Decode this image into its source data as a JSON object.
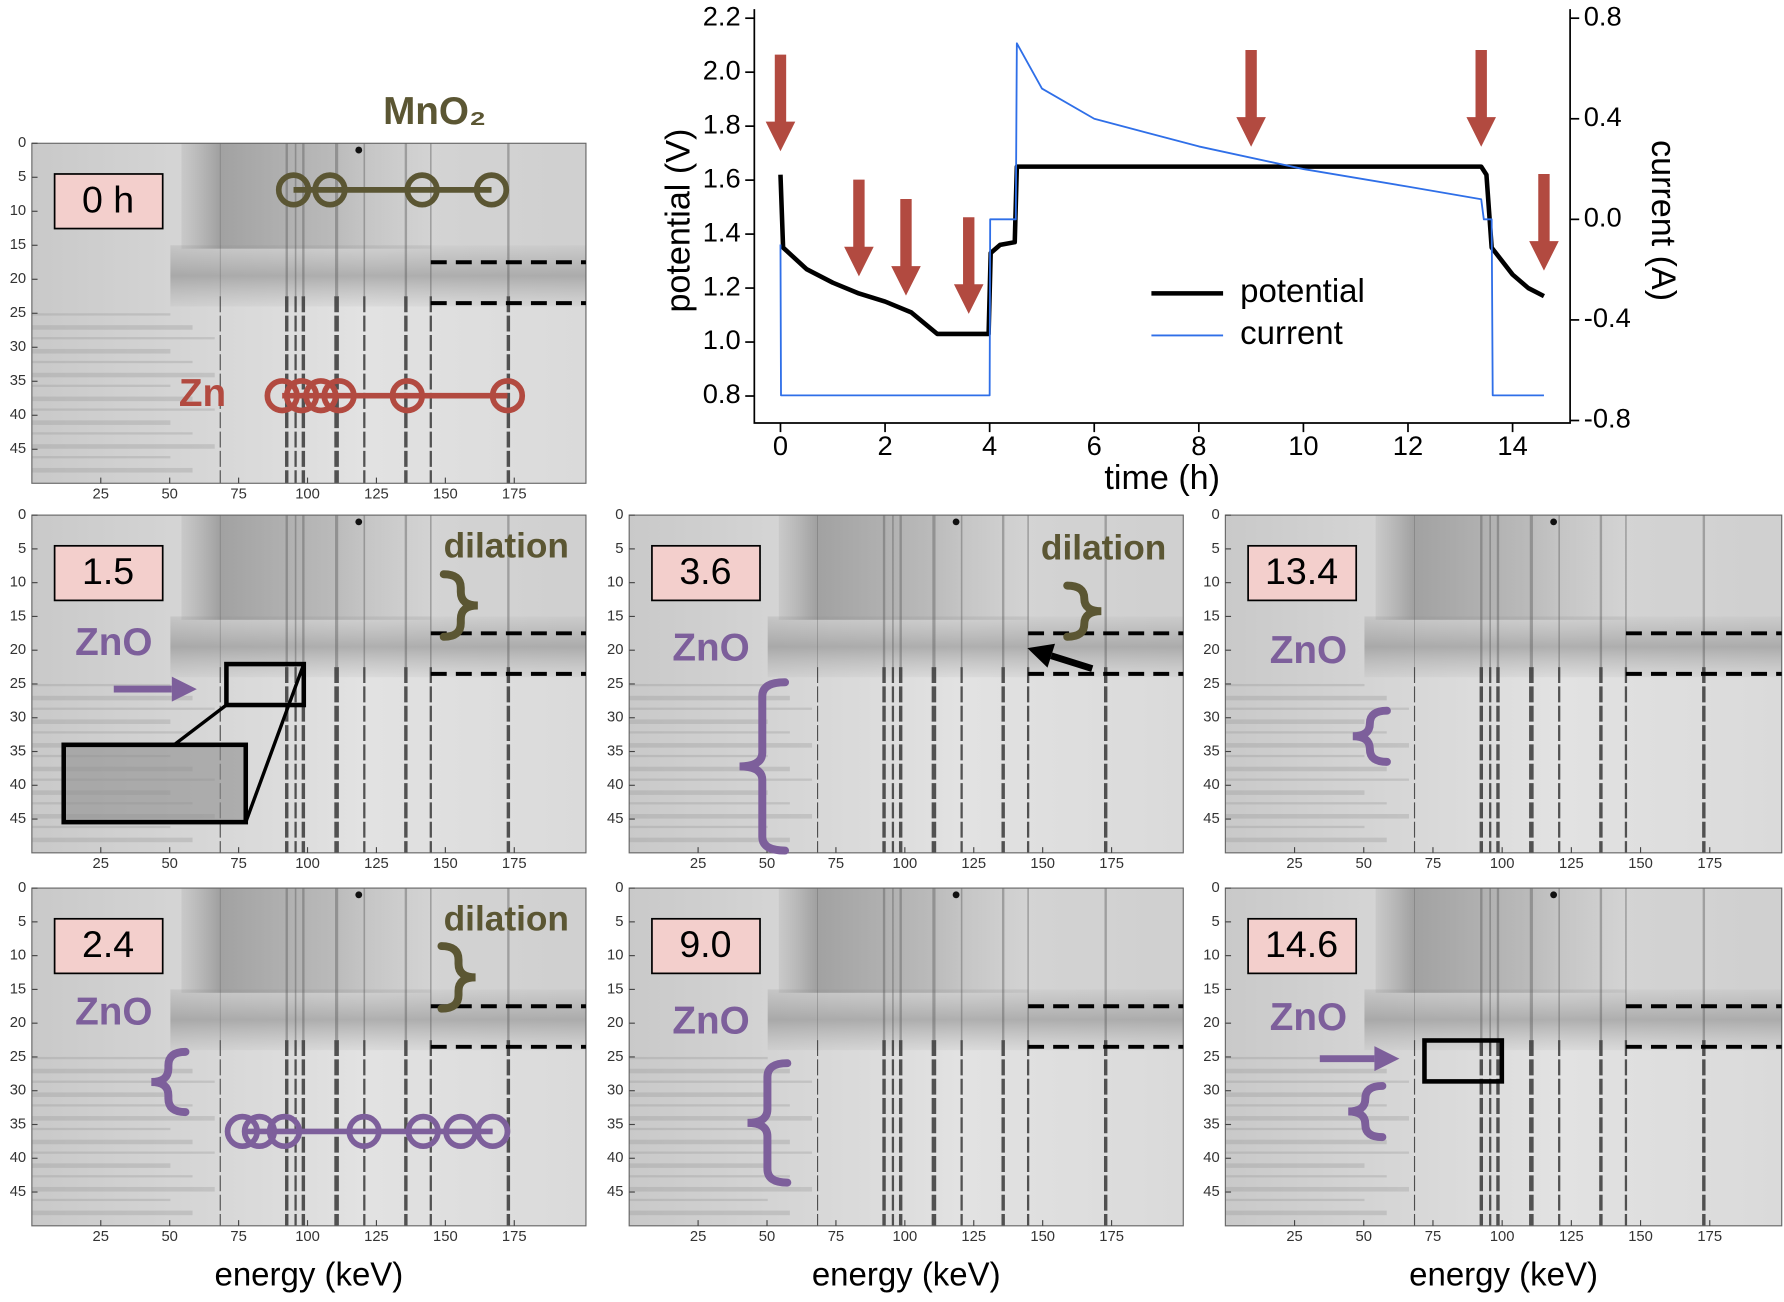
{
  "chart_data": [
    {
      "type": "line",
      "xlabel": "time (h)",
      "ylabel": "potential (V)",
      "y2label": "current (A)",
      "xlim": [
        -0.5,
        15.1
      ],
      "xticks": [
        0,
        2,
        4,
        6,
        8,
        10,
        12,
        14
      ],
      "ylim": [
        0.7,
        2.2
      ],
      "yticks": [
        0.8,
        {
          "value": 1,
          "label": "1.0"
        },
        1.2,
        1.4,
        1.6,
        1.8,
        {
          "value": 2,
          "label": "2.0"
        },
        2.2
      ],
      "y2lim": [
        -0.81,
        0.8
      ],
      "y2ticks": [
        -0.8,
        -0.4,
        {
          "value": 0,
          "label": "0.0"
        },
        0.4,
        0.8
      ],
      "legend": "lower right",
      "arrow_times": [
        0,
        1.5,
        2.4,
        3.6,
        9.0,
        13.4,
        14.6
      ],
      "arrow_color": "#b24a40",
      "series": [
        {
          "name": "potential",
          "color": "#000000",
          "x": [
            0,
            0.05,
            0.5,
            1,
            1.5,
            2,
            2.5,
            3,
            3.5,
            3.98,
            4.02,
            4.2,
            4.48,
            4.52,
            8,
            13.4,
            13.5,
            13.6,
            14,
            14.3,
            14.6
          ],
          "values": [
            1.62,
            1.35,
            1.27,
            1.22,
            1.18,
            1.15,
            1.11,
            1.03,
            1.03,
            1.03,
            1.33,
            1.36,
            1.37,
            1.65,
            1.65,
            1.65,
            1.62,
            1.35,
            1.25,
            1.2,
            1.17
          ]
        },
        {
          "name": "current",
          "color": "#2f6fe8",
          "axis": "y2",
          "x": [
            0,
            0.01,
            4,
            4.01,
            4.5,
            4.52,
            5,
            6,
            8,
            10,
            12,
            13.4,
            13.45,
            13.6,
            13.62,
            14.6
          ],
          "values": [
            -0.1,
            -0.7,
            -0.7,
            0,
            0,
            0.7,
            0.52,
            0.4,
            0.29,
            0.2,
            0.13,
            0.08,
            0,
            0,
            -0.7,
            -0.7
          ]
        }
      ]
    },
    {
      "type": "image",
      "label": "0 h",
      "xlim": [
        0,
        201
      ],
      "ylim": [
        0,
        50
      ],
      "y_inverted": true,
      "xticks": [
        25,
        50,
        75,
        100,
        125,
        150,
        175
      ],
      "yticks": [
        0,
        5,
        10,
        15,
        20,
        25,
        30,
        35,
        40,
        45
      ],
      "annotations": [
        {
          "text": "MnO₂",
          "color": "#5b5633"
        },
        {
          "text": "Zn",
          "color": "#b24a40"
        }
      ]
    },
    {
      "type": "image",
      "label": "1.5",
      "xlim": [
        0,
        201
      ],
      "ylim": [
        0,
        50
      ],
      "y_inverted": true,
      "xticks": [
        25,
        50,
        75,
        100,
        125,
        150,
        175
      ],
      "yticks": [
        0,
        5,
        10,
        15,
        20,
        25,
        30,
        35,
        40,
        45
      ],
      "annotations": [
        {
          "text": "dilation",
          "color": "#5b5633"
        },
        {
          "text": "ZnO",
          "color": "#7d5f9b"
        }
      ]
    },
    {
      "type": "image",
      "label": "3.6",
      "xlim": [
        0,
        201
      ],
      "ylim": [
        0,
        50
      ],
      "y_inverted": true,
      "xticks": [
        25,
        50,
        75,
        100,
        125,
        150,
        175
      ],
      "yticks": [
        0,
        5,
        10,
        15,
        20,
        25,
        30,
        35,
        40,
        45
      ],
      "annotations": [
        {
          "text": "dilation",
          "color": "#5b5633"
        },
        {
          "text": "ZnO",
          "color": "#7d5f9b"
        }
      ]
    },
    {
      "type": "image",
      "label": "13.4",
      "xlim": [
        0,
        201
      ],
      "ylim": [
        0,
        50
      ],
      "y_inverted": true,
      "xticks": [
        25,
        50,
        75,
        100,
        125,
        150,
        175
      ],
      "yticks": [
        0,
        5,
        10,
        15,
        20,
        25,
        30,
        35,
        40,
        45
      ],
      "annotations": [
        {
          "text": "ZnO",
          "color": "#7d5f9b"
        }
      ]
    },
    {
      "type": "image",
      "label": "2.4",
      "xlim": [
        0,
        201
      ],
      "ylim": [
        0,
        50
      ],
      "y_inverted": true,
      "xticks": [
        25,
        50,
        75,
        100,
        125,
        150,
        175
      ],
      "yticks": [
        0,
        5,
        10,
        15,
        20,
        25,
        30,
        35,
        40,
        45
      ],
      "xlabel": "energy (keV)",
      "annotations": [
        {
          "text": "dilation",
          "color": "#5b5633"
        },
        {
          "text": "ZnO",
          "color": "#7d5f9b"
        }
      ]
    },
    {
      "type": "image",
      "label": "9.0",
      "xlim": [
        0,
        201
      ],
      "ylim": [
        0,
        50
      ],
      "y_inverted": true,
      "xticks": [
        25,
        50,
        75,
        100,
        125,
        150,
        175
      ],
      "yticks": [
        0,
        5,
        10,
        15,
        20,
        25,
        30,
        35,
        40,
        45
      ],
      "xlabel": "energy (keV)",
      "annotations": [
        {
          "text": "ZnO",
          "color": "#7d5f9b"
        }
      ]
    },
    {
      "type": "image",
      "label": "14.6",
      "xlim": [
        0,
        201
      ],
      "ylim": [
        0,
        50
      ],
      "y_inverted": true,
      "xticks": [
        25,
        50,
        75,
        100,
        125,
        150,
        175
      ],
      "yticks": [
        0,
        5,
        10,
        15,
        20,
        25,
        30,
        35,
        40,
        45
      ],
      "xlabel": "energy (keV)",
      "annotations": [
        {
          "text": "ZnO",
          "color": "#7d5f9b"
        }
      ]
    }
  ]
}
